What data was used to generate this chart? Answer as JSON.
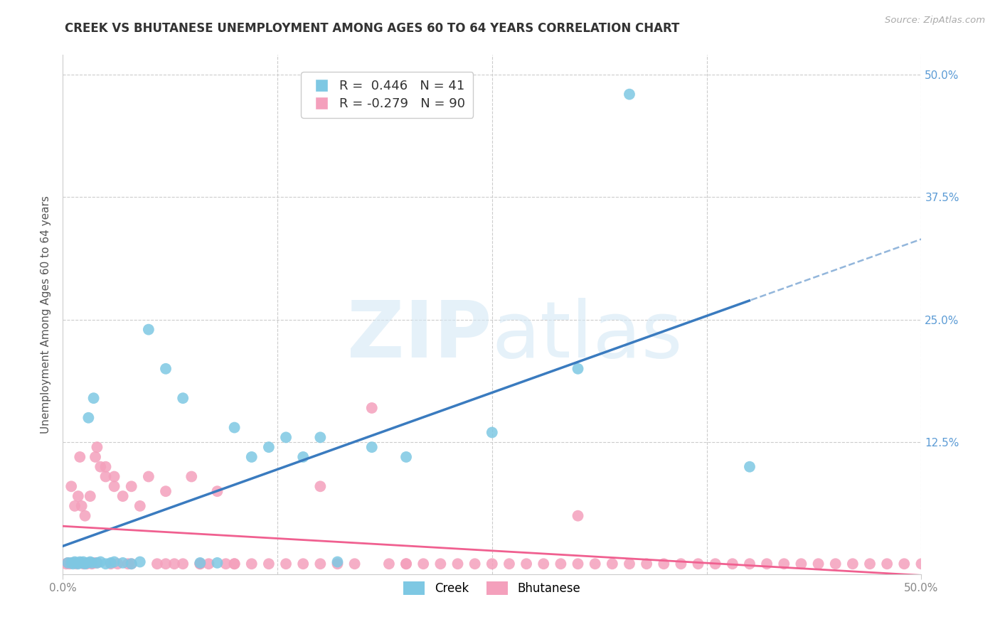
{
  "title": "CREEK VS BHUTANESE UNEMPLOYMENT AMONG AGES 60 TO 64 YEARS CORRELATION CHART",
  "source": "Source: ZipAtlas.com",
  "ylabel": "Unemployment Among Ages 60 to 64 years",
  "xlim": [
    0.0,
    0.5
  ],
  "ylim": [
    -0.01,
    0.52
  ],
  "background_color": "#ffffff",
  "grid_color": "#cccccc",
  "creek_color": "#7ec8e3",
  "bhutanese_color": "#f4a0bc",
  "creek_line_color": "#3a7bbf",
  "bhutanese_line_color": "#f06090",
  "creek_R": 0.446,
  "creek_N": 41,
  "bhutanese_R": -0.279,
  "bhutanese_N": 90,
  "watermark_color": "#d5e8f5",
  "right_axis_color": "#5b9bd5",
  "creek_x": [
    0.003,
    0.005,
    0.006,
    0.007,
    0.008,
    0.009,
    0.01,
    0.011,
    0.012,
    0.013,
    0.014,
    0.015,
    0.016,
    0.017,
    0.018,
    0.02,
    0.022,
    0.025,
    0.028,
    0.03,
    0.035,
    0.04,
    0.045,
    0.05,
    0.06,
    0.07,
    0.08,
    0.09,
    0.1,
    0.11,
    0.12,
    0.13,
    0.14,
    0.15,
    0.16,
    0.18,
    0.2,
    0.25,
    0.3,
    0.33,
    0.4
  ],
  "creek_y": [
    0.002,
    0.002,
    0.001,
    0.003,
    0.002,
    0.001,
    0.003,
    0.002,
    0.003,
    0.001,
    0.002,
    0.15,
    0.003,
    0.002,
    0.17,
    0.002,
    0.003,
    0.001,
    0.002,
    0.003,
    0.002,
    0.001,
    0.003,
    0.24,
    0.2,
    0.17,
    0.002,
    0.002,
    0.14,
    0.11,
    0.12,
    0.13,
    0.11,
    0.13,
    0.003,
    0.12,
    0.11,
    0.135,
    0.2,
    0.48,
    0.1
  ],
  "bhutanese_x": [
    0.002,
    0.003,
    0.004,
    0.005,
    0.006,
    0.007,
    0.008,
    0.009,
    0.01,
    0.011,
    0.012,
    0.013,
    0.014,
    0.015,
    0.016,
    0.017,
    0.018,
    0.019,
    0.02,
    0.022,
    0.025,
    0.028,
    0.03,
    0.032,
    0.035,
    0.038,
    0.04,
    0.045,
    0.05,
    0.055,
    0.06,
    0.065,
    0.07,
    0.075,
    0.08,
    0.085,
    0.09,
    0.095,
    0.1,
    0.11,
    0.12,
    0.13,
    0.14,
    0.15,
    0.16,
    0.17,
    0.18,
    0.19,
    0.2,
    0.21,
    0.22,
    0.23,
    0.24,
    0.25,
    0.26,
    0.27,
    0.28,
    0.29,
    0.3,
    0.31,
    0.32,
    0.33,
    0.34,
    0.35,
    0.36,
    0.37,
    0.38,
    0.39,
    0.4,
    0.41,
    0.42,
    0.43,
    0.44,
    0.45,
    0.46,
    0.47,
    0.48,
    0.49,
    0.5,
    0.01,
    0.02,
    0.025,
    0.03,
    0.04,
    0.06,
    0.08,
    0.1,
    0.15,
    0.2,
    0.3
  ],
  "bhutanese_y": [
    0.001,
    0.002,
    0.001,
    0.08,
    0.002,
    0.06,
    0.001,
    0.07,
    0.002,
    0.06,
    0.001,
    0.05,
    0.001,
    0.002,
    0.07,
    0.001,
    0.002,
    0.11,
    0.002,
    0.1,
    0.09,
    0.001,
    0.08,
    0.001,
    0.07,
    0.001,
    0.08,
    0.06,
    0.09,
    0.001,
    0.075,
    0.001,
    0.001,
    0.09,
    0.001,
    0.001,
    0.075,
    0.001,
    0.001,
    0.001,
    0.001,
    0.001,
    0.001,
    0.08,
    0.001,
    0.001,
    0.16,
    0.001,
    0.001,
    0.001,
    0.001,
    0.001,
    0.001,
    0.001,
    0.001,
    0.001,
    0.001,
    0.001,
    0.001,
    0.001,
    0.001,
    0.001,
    0.001,
    0.001,
    0.001,
    0.001,
    0.001,
    0.001,
    0.001,
    0.001,
    0.001,
    0.001,
    0.001,
    0.001,
    0.001,
    0.001,
    0.001,
    0.001,
    0.001,
    0.11,
    0.12,
    0.1,
    0.09,
    0.001,
    0.001,
    0.001,
    0.001,
    0.001,
    0.001,
    0.05
  ]
}
